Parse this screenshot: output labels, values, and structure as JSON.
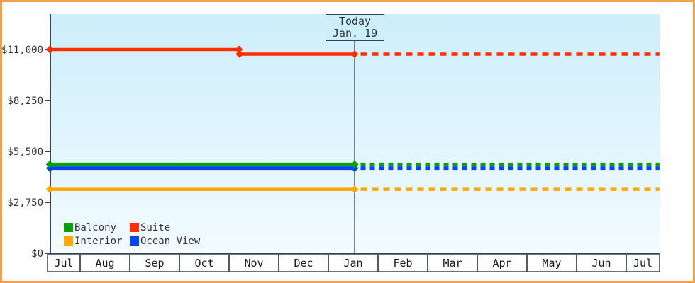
{
  "frame": {
    "border_color": "#eda24b",
    "background": "#ffffff"
  },
  "chart_data": {
    "type": "line",
    "title": "",
    "description": "Cruise cabin price history by category; solid lines are past prices, dotted lines are projection after today",
    "axis_color": "#39424d",
    "month_label_color": "#1a1a1a",
    "tick_label_color": "#333333",
    "plot_background": {
      "top_color": "#cdeefb",
      "bottom_color": "#f2fbff"
    },
    "grid": "off",
    "legend_position": "bottom-left",
    "x_axis": {
      "month_labels": [
        "Jul",
        "Aug",
        "Sep",
        "Oct",
        "Nov",
        "Dec",
        "Jan",
        "Feb",
        "Mar",
        "Apr",
        "May",
        "Jun",
        "Jul"
      ]
    },
    "y_axis": {
      "min": 0,
      "max": 11000,
      "ticks": [
        {
          "label": "$0",
          "value": 0
        },
        {
          "label": "$2,750",
          "value": 2750
        },
        {
          "label": "$5,500",
          "value": 5500
        },
        {
          "label": "$8,250",
          "value": 8250
        },
        {
          "label": "$11,000",
          "value": 11000
        }
      ]
    },
    "today_marker": {
      "title": "Today",
      "date": "Jan. 19",
      "month_position": 6.53
    },
    "series": [
      {
        "name": "Ocean View",
        "color": "#0546ec",
        "line_width": 5,
        "dash": "7 6",
        "history": [
          [
            0.39,
            4600
          ],
          [
            6.53,
            4600
          ]
        ],
        "forecast": [
          [
            6.65,
            4600
          ],
          [
            12.67,
            4600
          ]
        ],
        "markers": [
          [
            0.39,
            4600
          ],
          [
            6.53,
            4600
          ]
        ]
      },
      {
        "name": "Balcony",
        "color": "#0a9e0a",
        "line_width": 5,
        "dash": "7 6",
        "history": [
          [
            0.39,
            4800
          ],
          [
            6.53,
            4800
          ]
        ],
        "forecast": [
          [
            6.65,
            4800
          ],
          [
            12.67,
            4800
          ]
        ],
        "markers": [
          [
            0.39,
            4800
          ],
          [
            6.53,
            4800
          ]
        ]
      },
      {
        "name": "Interior",
        "color": "#ffa608",
        "line_width": 4.5,
        "dash": "9 7",
        "history": [
          [
            0.39,
            3450
          ],
          [
            6.53,
            3450
          ]
        ],
        "forecast": [
          [
            6.65,
            3450
          ],
          [
            12.67,
            3450
          ]
        ],
        "markers": [
          [
            0.39,
            3450
          ],
          [
            6.53,
            3450
          ]
        ]
      },
      {
        "name": "Suite",
        "color": "#ff2e00",
        "line_width": 4.5,
        "dash": "9 7",
        "history": [
          [
            0.39,
            11000
          ],
          [
            4.2,
            11000
          ],
          [
            4.2,
            10750
          ],
          [
            6.53,
            10750
          ]
        ],
        "forecast": [
          [
            6.65,
            10750
          ],
          [
            12.67,
            10750
          ]
        ],
        "markers": [
          [
            0.39,
            11000
          ],
          [
            4.2,
            11000
          ],
          [
            4.21,
            10750
          ],
          [
            6.53,
            10750
          ]
        ]
      }
    ],
    "legend": {
      "rows": [
        [
          {
            "label": "Balcony",
            "color": "#0a9e0a"
          },
          {
            "label": "Suite",
            "color": "#ff2e00"
          }
        ],
        [
          {
            "label": "Interior",
            "color": "#ffa608"
          },
          {
            "label": "Ocean View",
            "color": "#0546ec"
          }
        ]
      ]
    }
  }
}
